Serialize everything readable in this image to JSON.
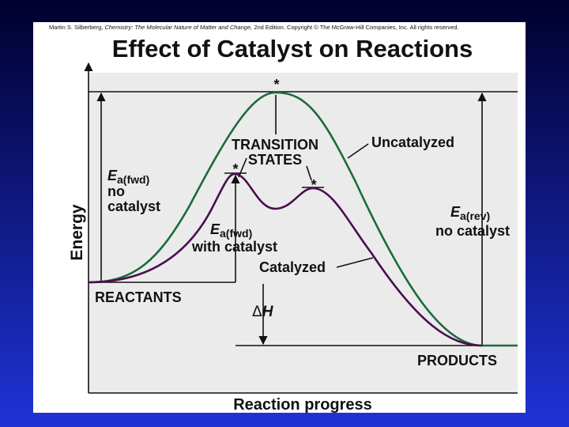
{
  "citation": {
    "author": "Martin S. Silberberg,",
    "book": "Chemistry: The Molecular Nature of Matter and Change,",
    "edition": "2nd Edition.",
    "copyright": "Copyright © The McGraw-Hill Companies, Inc. All rights reserved."
  },
  "title": "Effect of Catalyst on Reactions",
  "axes": {
    "y": "Energy",
    "x": "Reaction progress"
  },
  "labels": {
    "transition_states": [
      "TRANSITION",
      "STATES"
    ],
    "star": "*",
    "uncatalyzed": "Uncatalyzed",
    "catalyzed": "Catalyzed",
    "ea_fwd_no_cat": {
      "symbol": "E",
      "subscript": "a(fwd)",
      "lines": [
        "no",
        "catalyst"
      ]
    },
    "ea_fwd_cat": {
      "symbol": "E",
      "subscript": "a(fwd)",
      "lines": [
        "with catalyst"
      ]
    },
    "ea_rev_no_cat": {
      "symbol": "E",
      "subscript": "a(rev)",
      "lines": [
        "no catalyst"
      ]
    },
    "reactants": "REACTANTS",
    "products": "PRODUCTS",
    "delta_h": {
      "symbol": "Δ",
      "variable": "H"
    }
  }
}
